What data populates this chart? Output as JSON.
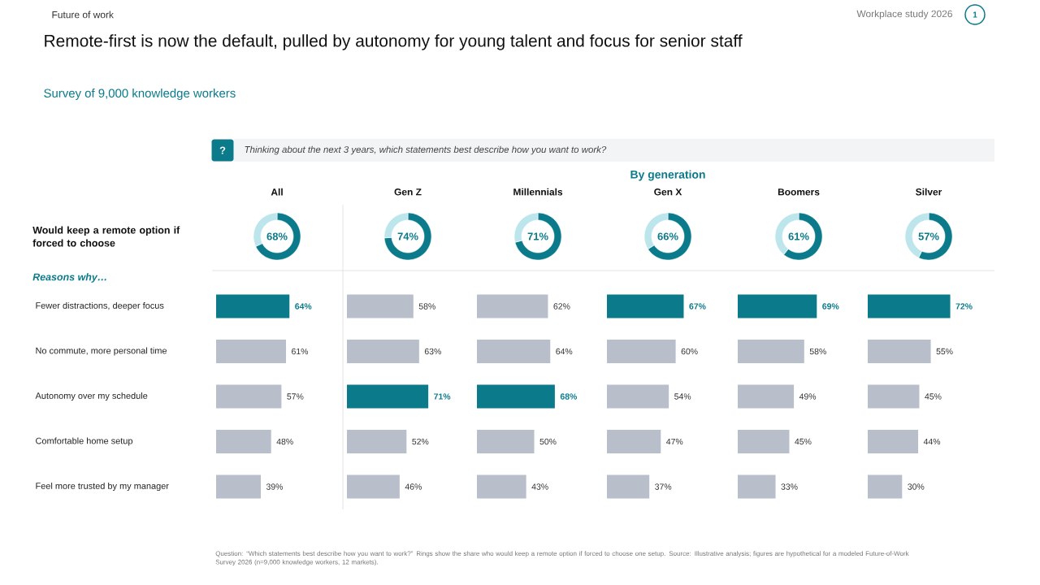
{
  "chart_data": [
    {
      "type": "other",
      "title": "Remote-first is now the default, pulled by autonomy for young talent and focus for senior staff",
      "subtitle": "Survey of 9,000 knowledge workers",
      "annotations": [
        "Future of work",
        "Workplace study 2026",
        "1",
        "?",
        "Thinking about the next 3 years, which statements best describe how you want to work?",
        "By generation",
        "Would keep a remote option if forced to choose",
        "Reasons why…",
        "Question: “Which statements best describe how you want to work?” Rings show the share who would keep a remote option if forced to choose one setup. Source: Illustrative analysis; figures are hypothetical for a modeled Future-of-Work Survey 2026 (n=9,000 knowledge workers, 12 markets)."
      ]
    },
    {
      "type": "donut",
      "title": "All",
      "categories": [
        null,
        null
      ],
      "values": [
        68,
        32
      ],
      "colors": [
        "#0b7a8a",
        "#bde5ec"
      ],
      "annotations": [
        "68%"
      ]
    },
    {
      "type": "donut",
      "title": "Gen Z",
      "categories": [
        null,
        null
      ],
      "values": [
        74,
        26
      ],
      "colors": [
        "#0b7a8a",
        "#bde5ec"
      ],
      "annotations": [
        "74%"
      ]
    },
    {
      "type": "donut",
      "title": "Millennials",
      "categories": [
        null,
        null
      ],
      "values": [
        71,
        29
      ],
      "colors": [
        "#0b7a8a",
        "#bde5ec"
      ],
      "annotations": [
        "71%"
      ]
    },
    {
      "type": "donut",
      "title": "Gen X",
      "categories": [
        null,
        null
      ],
      "values": [
        66,
        34
      ],
      "colors": [
        "#0b7a8a",
        "#bde5ec"
      ],
      "annotations": [
        "66%"
      ]
    },
    {
      "type": "donut",
      "title": "Boomers",
      "categories": [
        null,
        null
      ],
      "values": [
        61,
        39
      ],
      "colors": [
        "#0b7a8a",
        "#bde5ec"
      ],
      "annotations": [
        "61%"
      ]
    },
    {
      "type": "donut",
      "title": "Silver",
      "categories": [
        null,
        null
      ],
      "values": [
        57,
        43
      ],
      "colors": [
        "#0b7a8a",
        "#bde5ec"
      ],
      "annotations": [
        "57%"
      ]
    },
    {
      "type": "bar",
      "orientation": "horizontal",
      "categories": [
        "Fewer distractions, deeper focus",
        "No commute, more personal time",
        "Autonomy over my schedule",
        "Comfortable home setup",
        "Feel more trusted by my manager"
      ],
      "values": [
        64,
        61,
        57,
        48,
        39
      ],
      "color": "#b8bfca",
      "colors": [
        "#0b7a8a",
        "#b8bfca",
        "#b8bfca",
        "#b8bfca",
        "#b8bfca"
      ],
      "value_labels": [
        "64%",
        "61%",
        "57%",
        "48%",
        "39%"
      ],
      "tick_labels": "y"
    },
    {
      "type": "bar",
      "orientation": "horizontal",
      "categories": [
        null,
        null,
        null,
        null,
        null
      ],
      "values": [
        58,
        63,
        71,
        52,
        46
      ],
      "color": "#b8bfca",
      "colors": [
        "#b8bfca",
        "#b8bfca",
        "#0b7a8a",
        "#b8bfca",
        "#b8bfca"
      ],
      "value_labels": [
        "58%",
        "63%",
        "71%",
        "52%",
        "46%"
      ]
    },
    {
      "type": "bar",
      "orientation": "horizontal",
      "categories": [
        null,
        null,
        null,
        null,
        null
      ],
      "values": [
        62,
        64,
        68,
        50,
        43
      ],
      "color": "#b8bfca",
      "colors": [
        "#b8bfca",
        "#b8bfca",
        "#0b7a8a",
        "#b8bfca",
        "#b8bfca"
      ],
      "value_labels": [
        "62%",
        "64%",
        "68%",
        "50%",
        "43%"
      ]
    },
    {
      "type": "bar",
      "orientation": "horizontal",
      "categories": [
        null,
        null,
        null,
        null,
        null
      ],
      "values": [
        67,
        60,
        54,
        47,
        37
      ],
      "color": "#b8bfca",
      "colors": [
        "#0b7a8a",
        "#b8bfca",
        "#b8bfca",
        "#b8bfca",
        "#b8bfca"
      ],
      "value_labels": [
        "67%",
        "60%",
        "54%",
        "47%",
        "37%"
      ]
    },
    {
      "type": "bar",
      "orientation": "horizontal",
      "categories": [
        null,
        null,
        null,
        null,
        null
      ],
      "values": [
        69,
        58,
        49,
        45,
        33
      ],
      "color": "#b8bfca",
      "colors": [
        "#0b7a8a",
        "#b8bfca",
        "#b8bfca",
        "#b8bfca",
        "#b8bfca"
      ],
      "value_labels": [
        "69%",
        "58%",
        "49%",
        "45%",
        "33%"
      ]
    },
    {
      "type": "bar",
      "orientation": "horizontal",
      "categories": [
        null,
        null,
        null,
        null,
        null
      ],
      "values": [
        72,
        55,
        45,
        44,
        30
      ],
      "color": "#b8bfca",
      "colors": [
        "#0b7a8a",
        "#b8bfca",
        "#b8bfca",
        "#b8bfca",
        "#b8bfca"
      ],
      "value_labels": [
        "72%",
        "55%",
        "45%",
        "44%",
        "30%"
      ]
    }
  ]
}
